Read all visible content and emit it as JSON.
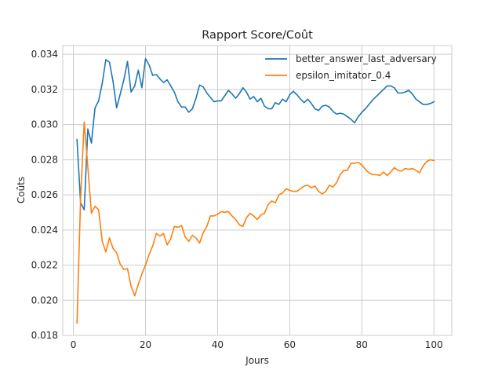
{
  "chart_data": {
    "type": "line",
    "title": "Rapport Score/Coût",
    "xlabel": "Jours",
    "ylabel": "Coûts",
    "xlim": [
      -2.95,
      104.95
    ],
    "ylim": [
      0.018,
      0.0345
    ],
    "xticks": [
      0,
      20,
      40,
      60,
      80,
      100
    ],
    "yticks": [
      0.018,
      0.02,
      0.022,
      0.024,
      0.026,
      0.028,
      0.03,
      0.032,
      0.034
    ],
    "ytick_labels": [
      "0.018",
      "0.020",
      "0.022",
      "0.024",
      "0.026",
      "0.028",
      "0.030",
      "0.032",
      "0.034"
    ],
    "grid": true,
    "legend_position": "top-right",
    "x": [
      1,
      2,
      3,
      4,
      5,
      6,
      7,
      8,
      9,
      10,
      11,
      12,
      13,
      14,
      15,
      16,
      17,
      18,
      19,
      20,
      21,
      22,
      23,
      24,
      25,
      26,
      27,
      28,
      29,
      30,
      31,
      32,
      33,
      34,
      35,
      36,
      37,
      38,
      39,
      40,
      41,
      42,
      43,
      44,
      45,
      46,
      47,
      48,
      49,
      50,
      51,
      52,
      53,
      54,
      55,
      56,
      57,
      58,
      59,
      60,
      61,
      62,
      63,
      64,
      65,
      66,
      67,
      68,
      69,
      70,
      71,
      72,
      73,
      74,
      75,
      76,
      77,
      78,
      79,
      80,
      81,
      82,
      83,
      84,
      85,
      86,
      87,
      88,
      89,
      90,
      91,
      92,
      93,
      94,
      95,
      96,
      97,
      98,
      99,
      100
    ],
    "series": [
      {
        "name": "better_answer_last_adversary",
        "color": "#1f77b4",
        "values": [
          0.02915,
          0.02555,
          0.02515,
          0.02975,
          0.02895,
          0.03095,
          0.03135,
          0.03235,
          0.0337,
          0.03355,
          0.03245,
          0.03095,
          0.03175,
          0.03255,
          0.0336,
          0.03185,
          0.0322,
          0.0331,
          0.0321,
          0.03375,
          0.0334,
          0.0328,
          0.03285,
          0.0326,
          0.0324,
          0.03255,
          0.0322,
          0.03185,
          0.0313,
          0.031,
          0.031,
          0.0307,
          0.0309,
          0.0315,
          0.03225,
          0.03215,
          0.0318,
          0.03155,
          0.0313,
          0.03135,
          0.03135,
          0.03165,
          0.03195,
          0.03175,
          0.0315,
          0.03175,
          0.0321,
          0.03185,
          0.03145,
          0.0316,
          0.0313,
          0.0315,
          0.03105,
          0.0309,
          0.0309,
          0.03125,
          0.03115,
          0.03145,
          0.0313,
          0.0317,
          0.0319,
          0.0317,
          0.03145,
          0.03125,
          0.03145,
          0.0312,
          0.0309,
          0.0308,
          0.03105,
          0.0311,
          0.031,
          0.03075,
          0.0306,
          0.03065,
          0.0306,
          0.03045,
          0.0303,
          0.0301,
          0.03045,
          0.0307,
          0.0309,
          0.03115,
          0.0314,
          0.0316,
          0.0318,
          0.032,
          0.0322,
          0.0322,
          0.0321,
          0.0318,
          0.0318,
          0.03185,
          0.03195,
          0.03175,
          0.03145,
          0.0313,
          0.03115,
          0.03115,
          0.0312,
          0.0313
        ]
      },
      {
        "name": "epsilon_imitator_0.4",
        "color": "#ff7f0e",
        "values": [
          0.0187,
          0.0258,
          0.03015,
          0.0276,
          0.02495,
          0.02535,
          0.02515,
          0.02335,
          0.02275,
          0.02355,
          0.02295,
          0.0227,
          0.02205,
          0.02175,
          0.0218,
          0.0208,
          0.02025,
          0.0209,
          0.0215,
          0.022,
          0.0226,
          0.0231,
          0.0238,
          0.02365,
          0.0238,
          0.02315,
          0.0235,
          0.0242,
          0.02415,
          0.02425,
          0.0236,
          0.02335,
          0.0237,
          0.02355,
          0.02325,
          0.02385,
          0.0242,
          0.0248,
          0.0248,
          0.0249,
          0.02505,
          0.025,
          0.02505,
          0.0248,
          0.0246,
          0.0243,
          0.0242,
          0.0247,
          0.02495,
          0.0248,
          0.0246,
          0.02485,
          0.02495,
          0.02545,
          0.02565,
          0.02555,
          0.026,
          0.0261,
          0.02635,
          0.02625,
          0.0262,
          0.0262,
          0.02635,
          0.0265,
          0.02655,
          0.0264,
          0.0265,
          0.0262,
          0.02605,
          0.0262,
          0.02655,
          0.02645,
          0.0267,
          0.02715,
          0.0274,
          0.0274,
          0.0278,
          0.0278,
          0.02785,
          0.0277,
          0.02745,
          0.02725,
          0.02715,
          0.02715,
          0.0271,
          0.0273,
          0.0271,
          0.0273,
          0.02755,
          0.0274,
          0.02735,
          0.0275,
          0.02745,
          0.0275,
          0.0274,
          0.02725,
          0.02765,
          0.0279,
          0.028,
          0.02795
        ]
      }
    ]
  }
}
